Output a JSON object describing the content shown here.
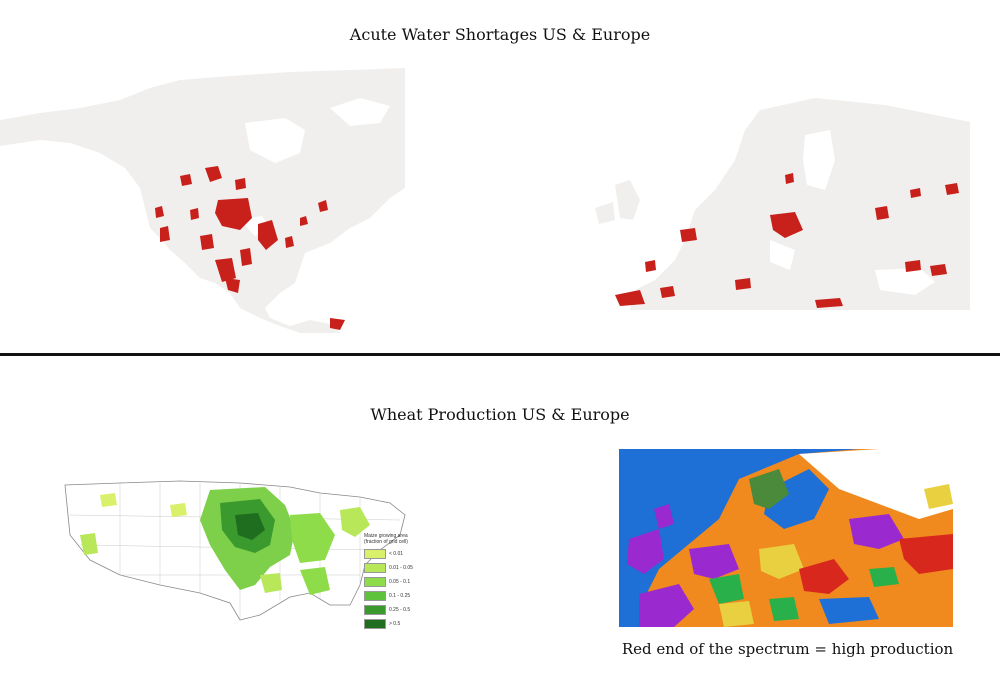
{
  "titles": {
    "water": "Acute Water Shortages US & Europe",
    "wheat": "Wheat Production US & Europe"
  },
  "caption": "Red end of the spectrum = high production",
  "legend": {
    "title_line1": "Maize growing area",
    "title_line2": "(fraction of grid cell)",
    "items": [
      {
        "label": "< 0.01",
        "color": "#d9f06a"
      },
      {
        "label": "0.01 - 0.05",
        "color": "#b8e85a"
      },
      {
        "label": "0.05 - 0.1",
        "color": "#8fdc4a"
      },
      {
        "label": "0.1 - 0.25",
        "color": "#5fc23c"
      },
      {
        "label": "0.25 - 0.5",
        "color": "#3a9a2e"
      },
      {
        "label": "> 0.5",
        "color": "#1f6e1f"
      }
    ]
  },
  "colors": {
    "land": "#f0efed",
    "shortage": "#c8201a",
    "ocean": "#1e6fd6"
  }
}
